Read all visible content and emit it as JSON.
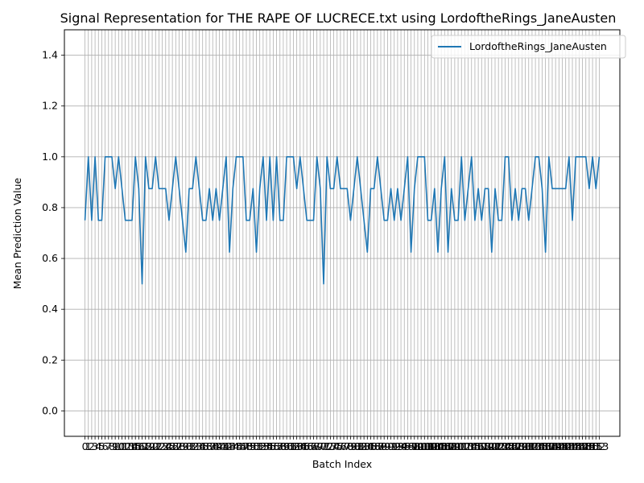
{
  "chart_data": {
    "type": "line",
    "title": "Signal Representation for THE RAPE OF LUCRECE.txt using LordoftheRings_JaneAusten",
    "xlabel": "Batch Index",
    "ylabel": "Mean Prediction Value",
    "ylim": [
      -0.1,
      1.5
    ],
    "y_ticks": [
      0.0,
      0.2,
      0.4,
      0.6,
      0.8,
      1.0,
      1.2,
      1.4
    ],
    "x_range": [
      0,
      153
    ],
    "grid": true,
    "legend": "upper right",
    "series": [
      {
        "name": "LordoftheRings_JaneAusten",
        "color": "#1f77b4",
        "values": [
          0.75,
          1.0,
          0.75,
          1.0,
          0.75,
          0.75,
          1.0,
          1.0,
          1.0,
          0.875,
          1.0,
          0.875,
          0.75,
          0.75,
          0.75,
          1.0,
          0.875,
          0.5,
          1.0,
          0.875,
          0.875,
          1.0,
          0.875,
          0.875,
          0.875,
          0.75,
          0.875,
          1.0,
          0.875,
          0.75,
          0.625,
          0.875,
          0.875,
          1.0,
          0.875,
          0.75,
          0.75,
          0.875,
          0.75,
          0.875,
          0.75,
          0.875,
          1.0,
          0.625,
          0.875,
          1.0,
          1.0,
          1.0,
          0.75,
          0.75,
          0.875,
          0.625,
          0.875,
          1.0,
          0.75,
          1.0,
          0.75,
          1.0,
          0.75,
          0.75,
          1.0,
          1.0,
          1.0,
          0.875,
          1.0,
          0.875,
          0.75,
          0.75,
          0.75,
          1.0,
          0.875,
          0.5,
          1.0,
          0.875,
          0.875,
          1.0,
          0.875,
          0.875,
          0.875,
          0.75,
          0.875,
          1.0,
          0.875,
          0.75,
          0.625,
          0.875,
          0.875,
          1.0,
          0.875,
          0.75,
          0.75,
          0.875,
          0.75,
          0.875,
          0.75,
          0.875,
          1.0,
          0.625,
          0.875,
          1.0,
          1.0,
          1.0,
          0.75,
          0.75,
          0.875,
          0.625,
          0.875,
          1.0,
          0.625,
          0.875,
          0.75,
          0.75,
          1.0,
          0.75,
          0.875,
          1.0,
          0.75,
          0.875,
          0.75,
          0.875,
          0.875,
          0.625,
          0.875,
          0.75,
          0.75,
          1.0,
          1.0,
          0.75,
          0.875,
          0.75,
          0.875,
          0.875,
          0.75,
          0.875,
          1.0,
          1.0,
          0.875,
          0.625,
          1.0,
          0.875,
          0.875,
          0.875,
          0.875,
          0.875,
          1.0,
          0.75,
          1.0,
          1.0,
          1.0,
          1.0,
          0.875,
          1.0,
          0.875,
          1.0
        ]
      }
    ]
  }
}
